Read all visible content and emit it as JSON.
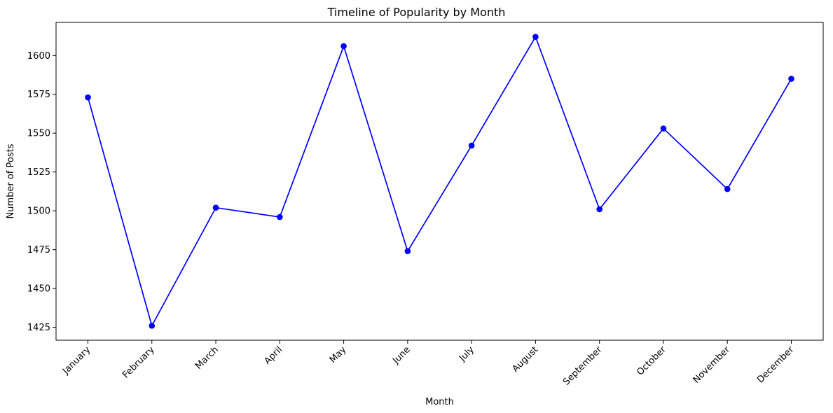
{
  "chart_data": {
    "type": "line",
    "title": "Timeline of Popularity by Month",
    "xlabel": "Month",
    "ylabel": "Number of Posts",
    "categories": [
      "January",
      "February",
      "March",
      "April",
      "May",
      "June",
      "July",
      "August",
      "September",
      "October",
      "November",
      "December"
    ],
    "series": [
      {
        "values": [
          1573,
          1426,
          1502,
          1496,
          1606,
          1474,
          1542,
          1612,
          1501,
          1553,
          1514,
          1585
        ],
        "color": "#0000ff",
        "marker": "circle"
      }
    ],
    "ylim": [
      1416.7,
      1621.3
    ],
    "yticks": [
      1425,
      1450,
      1475,
      1500,
      1525,
      1550,
      1575,
      1600
    ],
    "grid": false,
    "legend": "none"
  }
}
